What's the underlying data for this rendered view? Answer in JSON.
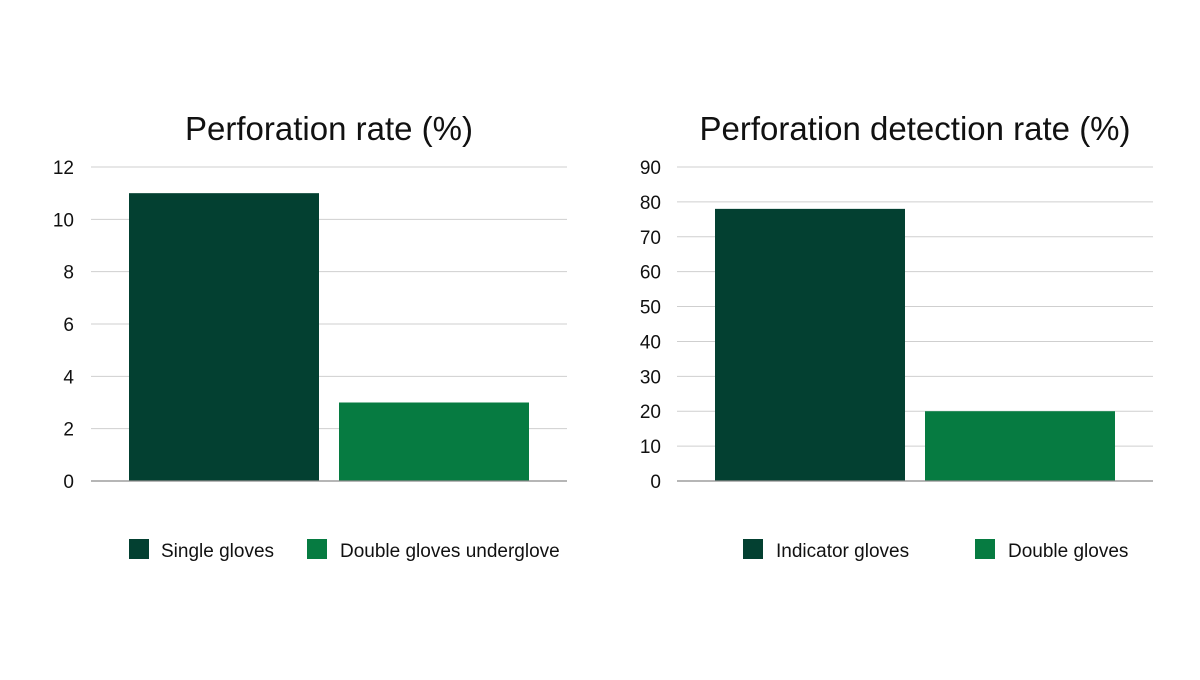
{
  "chart_data": [
    {
      "type": "bar",
      "title": "Perforation rate (%)",
      "xlabel": "",
      "ylabel": "",
      "ylim": [
        0,
        12
      ],
      "yticks": [
        0,
        2,
        4,
        6,
        8,
        10,
        12
      ],
      "grid": true,
      "legend_position": "bottom",
      "series": [
        {
          "name": "Single gloves",
          "value": 11,
          "color": "#034031"
        },
        {
          "name": "Double gloves underglove",
          "value": 3,
          "color": "#067B41"
        }
      ]
    },
    {
      "type": "bar",
      "title": "Perforation detection rate (%)",
      "xlabel": "",
      "ylabel": "",
      "ylim": [
        0,
        90
      ],
      "yticks": [
        0,
        10,
        20,
        30,
        40,
        50,
        60,
        70,
        80,
        90
      ],
      "grid": true,
      "legend_position": "bottom",
      "series": [
        {
          "name": "Indicator gloves",
          "value": 78,
          "color": "#034031"
        },
        {
          "name": "Double gloves",
          "value": 20,
          "color": "#067B41"
        }
      ]
    }
  ]
}
